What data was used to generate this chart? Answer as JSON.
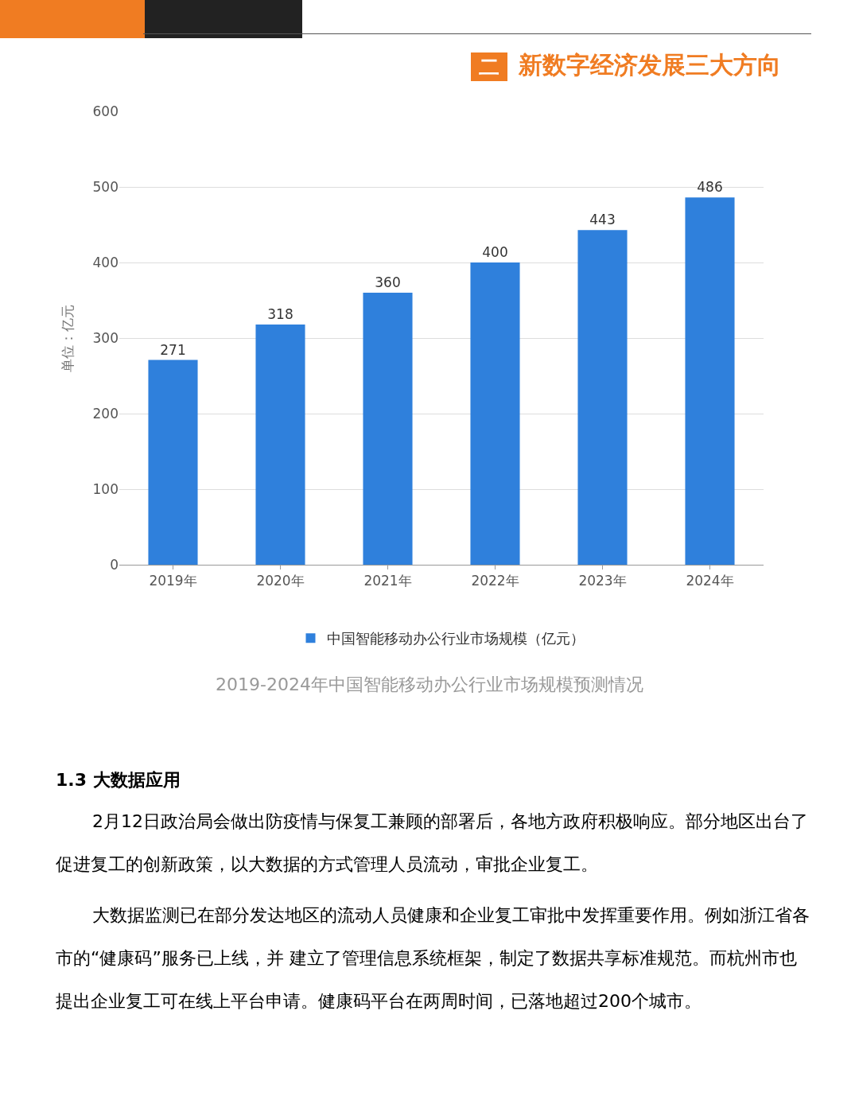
{
  "chart_data": {
    "type": "bar",
    "title": "新数字经济发展三大方向",
    "categories": [
      "2019年",
      "2020年",
      "2021年",
      "2022年",
      "2023年",
      "2024年"
    ],
    "series": [
      {
        "name": "中国智能移动办公行业市场规模（亿元）",
        "color": "#2f80dc",
        "values": [
          271,
          318,
          360,
          400,
          443,
          486
        ]
      }
    ],
    "ylabel": "单位：亿元",
    "ylim": [
      0,
      600
    ],
    "yticks": [
      0,
      100,
      200,
      300,
      400,
      500,
      600
    ],
    "grid": "y",
    "legend": "bottom",
    "data_labels": true,
    "annotations": [
      "二",
      "2019-2024年中国智能移动办公行业市场规模预测情况",
      "1.3 大数据应用",
      "2月12日政治局会做出防疫情与保复工兼顾的部署后，各地方政府积极响应。部分地区出台了促进复工的创新政策，以大数据的方式管理人员流动，审批企业复工。",
      "大数据监测已在部分发达地区的流动人员健康和企业复工审批中发挥重要作用。例如浙江省各市的“健康码”服务已上线，并 建立了管理信息系统框架，制定了数据共享标准规范。而杭州市也提出企业复工可在线上平台申请。健康码平台在两周时间，已落地超过200个城市。"
    ]
  }
}
